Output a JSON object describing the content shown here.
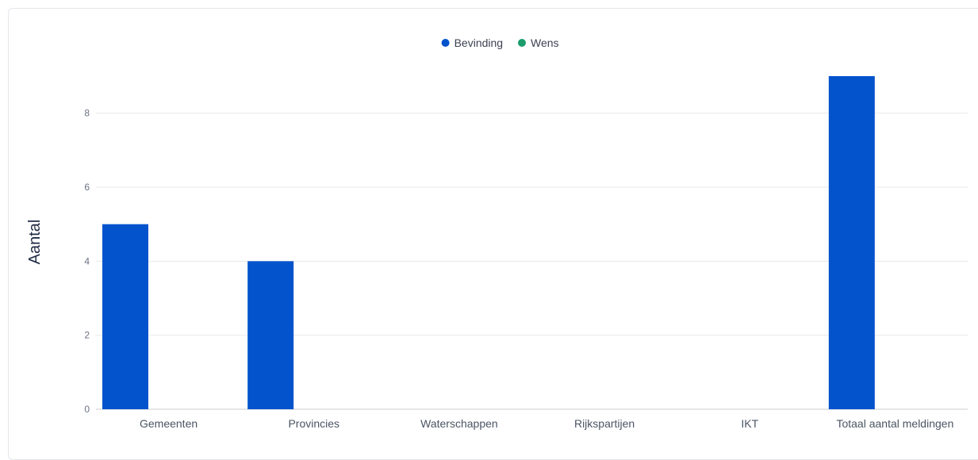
{
  "chart_data": {
    "type": "bar",
    "ylabel": "Aantal",
    "categories": [
      "Gemeenten",
      "Provincies",
      "Waterschappen",
      "Rijkspartijen",
      "IKT",
      "Totaal aantal meldingen"
    ],
    "series": [
      {
        "name": "Bevinding",
        "color": "#0353cc",
        "values": [
          5,
          4,
          0,
          0,
          0,
          9
        ]
      },
      {
        "name": "Wens",
        "color": "#1a9c6b",
        "values": [
          0,
          0,
          0,
          0,
          0,
          0
        ]
      }
    ],
    "yticks": [
      0,
      2,
      4,
      6,
      8
    ],
    "ylim": [
      0,
      9
    ],
    "grid": true,
    "legend_position": "top-center"
  }
}
